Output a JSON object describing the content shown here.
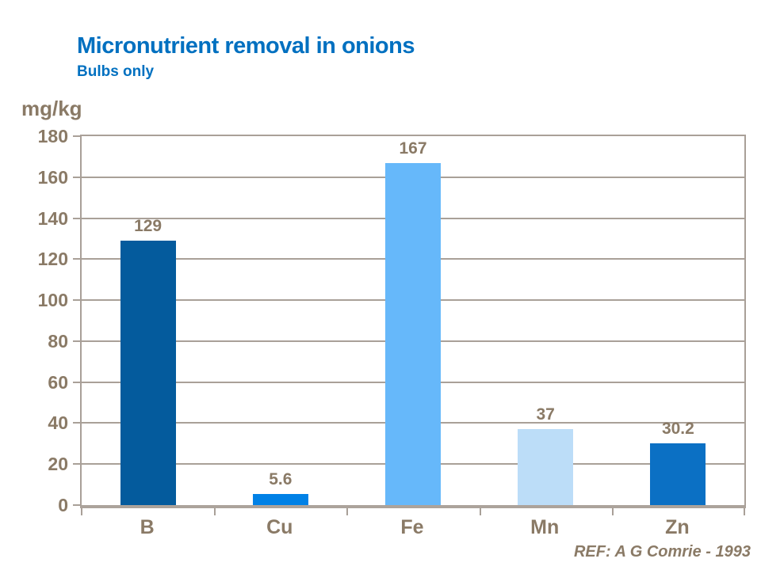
{
  "header": {
    "title": "Micronutrient removal in onions",
    "subtitle": "Bulbs only"
  },
  "footer": {
    "reference": "REF: A G Comrie - 1993"
  },
  "chart_data": {
    "type": "bar",
    "title": "Micronutrient removal in onions",
    "subtitle": "Bulbs only",
    "categories": [
      "B",
      "Cu",
      "Fe",
      "Mn",
      "Zn"
    ],
    "values": [
      129,
      5.6,
      167,
      37,
      30.2
    ],
    "data_labels": [
      "129",
      "5.6",
      "167",
      "37",
      "30.2"
    ],
    "bar_colors": [
      "#045B9D",
      "#0081E6",
      "#66B8FA",
      "#BCDDF8",
      "#0B70C4"
    ],
    "xlabel": "",
    "ylabel": "mg/kg",
    "ylim": [
      0,
      180
    ],
    "ytick_step": 20,
    "grid": true,
    "legend": false
  },
  "colors": {
    "title_blue": "#0070C0",
    "label_brown": "#8A7A66",
    "gridline": "#A9A098",
    "axis": "#ACA39B"
  }
}
